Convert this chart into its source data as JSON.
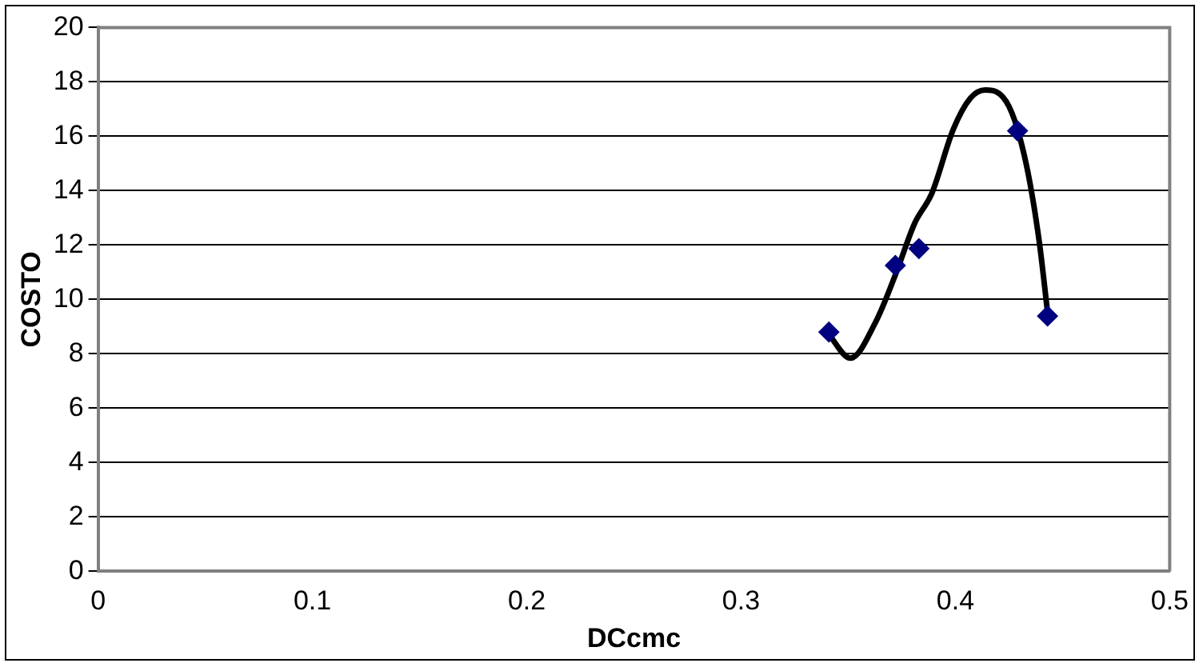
{
  "chart_data": {
    "type": "scatter",
    "xlabel": "DCcmc",
    "ylabel": "COSTO",
    "xlim": [
      0,
      0.5
    ],
    "xticks": [
      0,
      0.1,
      0.2,
      0.3,
      0.4,
      0.5
    ],
    "ylim": [
      0,
      20
    ],
    "yticks": [
      0,
      2,
      4,
      6,
      8,
      10,
      12,
      14,
      16,
      18,
      20
    ],
    "grid": "y",
    "legend": false,
    "marker": "diamond",
    "series": [
      {
        "color": "#000080",
        "x": [
          0.341,
          0.372,
          0.383,
          0.429,
          0.443
        ],
        "values": [
          8.8,
          11.25,
          11.87,
          16.2,
          9.39
        ]
      },
      {
        "type": "line",
        "color": "#000000",
        "marker": "none",
        "x": [
          0.341,
          0.351,
          0.363,
          0.372,
          0.381,
          0.389,
          0.399,
          0.407,
          0.414,
          0.425,
          0.433,
          0.439,
          0.443
        ],
        "values": [
          8.7,
          7.84,
          9.2,
          10.9,
          12.8,
          13.9,
          16.25,
          17.4,
          17.7,
          17.1,
          15.0,
          12.2,
          9.54
        ]
      }
    ]
  }
}
